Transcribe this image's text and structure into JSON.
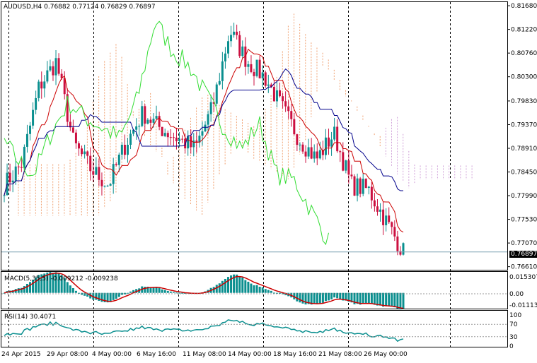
{
  "header": {
    "symbol": "AUDUSD,H4",
    "ohlc": "0.76882 0.77124 0.76829 0.76897"
  },
  "main_axis": {
    "ticks": [
      "0.81680",
      "0.81220",
      "0.80760",
      "0.80300",
      "0.79830",
      "0.79370",
      "0.78910",
      "0.78450",
      "0.77990",
      "0.77530",
      "0.77070",
      "0.76610"
    ],
    "tick_values": [
      0.8168,
      0.8122,
      0.8076,
      0.803,
      0.7983,
      0.7937,
      0.7891,
      0.7845,
      0.7799,
      0.7753,
      0.7707,
      0.7661
    ],
    "current_price": "0.76897",
    "current_value": 0.76897
  },
  "macd_panel": {
    "label": "MACD(5,35,5) -0.009212 -0.009238",
    "ticks": [
      "0.015307",
      "0.00",
      "-0.011138"
    ]
  },
  "rsi_panel": {
    "label": "RSI(14) 30.4071",
    "ticks": [
      "100",
      "70",
      "30",
      "0"
    ]
  },
  "time_axis": {
    "labels": [
      "24 Apr 2015",
      "29 Apr 08:00",
      "4 May 00:00",
      "6 May 16:00",
      "11 May 08:00",
      "14 May 00:00",
      "18 May 16:00",
      "21 May 08:00",
      "26 May 00:00"
    ]
  },
  "colors": {
    "bull": "#0a8f8f",
    "bear": "#cc1040",
    "tenkan": "#cc0000",
    "kijun": "#00008b",
    "chikou": "#33dd33",
    "cloud_up": "#f0a070",
    "cloud_down": "#d0a0d8",
    "grid": "#000000"
  },
  "chart_data": {
    "type": "candlestick",
    "symbol": "AUDUSD",
    "timeframe": "H4",
    "x": [
      "24 Apr 2015",
      "29 Apr 08:00",
      "4 May 00:00",
      "6 May 16:00",
      "11 May 08:00",
      "14 May 00:00",
      "18 May 16:00",
      "21 May 08:00",
      "26 May 00:00"
    ],
    "close_path": [
      0.782,
      0.786,
      0.801,
      0.806,
      0.79,
      0.785,
      0.782,
      0.79,
      0.796,
      0.793,
      0.791,
      0.789,
      0.797,
      0.812,
      0.806,
      0.803,
      0.797,
      0.791,
      0.787,
      0.792,
      0.782,
      0.781,
      0.775,
      0.769
    ],
    "ylim": [
      0.7655,
      0.8175
    ],
    "macd_range": [
      -0.0115,
      0.0155
    ],
    "rsi_range": [
      0,
      100
    ]
  }
}
